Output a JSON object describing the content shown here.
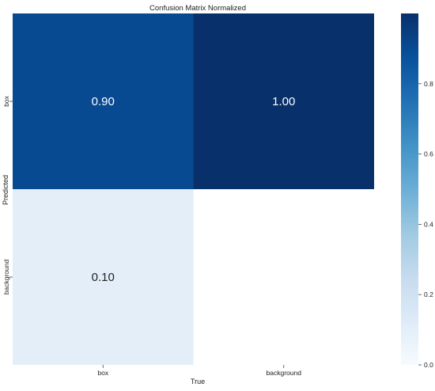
{
  "chart_data": {
    "type": "heatmap",
    "title": "Confusion Matrix Normalized",
    "xlabel": "True",
    "ylabel": "Predicted",
    "x_categories": [
      "box",
      "background"
    ],
    "y_categories": [
      "box",
      "background"
    ],
    "values": [
      [
        0.9,
        1.0
      ],
      [
        0.1,
        null
      ]
    ],
    "cell_labels": [
      [
        "0.90",
        "1.00"
      ],
      [
        "0.10",
        ""
      ]
    ],
    "colormap": "Blues",
    "colorbar": {
      "range": [
        0,
        1
      ],
      "ticks": [
        "0.0",
        "0.2",
        "0.4",
        "0.6",
        "0.8"
      ],
      "tick_values": [
        0.0,
        0.2,
        0.4,
        0.6,
        0.8
      ]
    }
  }
}
